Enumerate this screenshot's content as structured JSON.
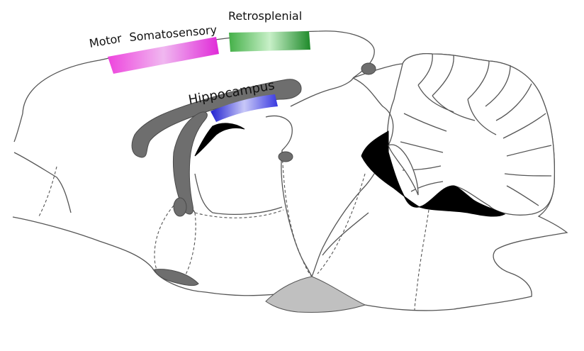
{
  "labels": {
    "motor": "Motor",
    "somatosensory": "Somatosensory",
    "retrosplenial": "Retrosplenial",
    "hippocampus": "Hippocampus"
  },
  "colors": {
    "motor_somatosensory": [
      "#ee44dd",
      "#f0b8f0",
      "#e02ad8"
    ],
    "retrosplenial": [
      "#44b048",
      "#c8f0c8",
      "#1e8a2a"
    ],
    "hippocampus": [
      "#3838e0",
      "#c8c8f8",
      "#2020d0"
    ],
    "white_matter": "#6e6e6e",
    "ventricle": "#000000",
    "pituitary": "#c0c0c0"
  }
}
